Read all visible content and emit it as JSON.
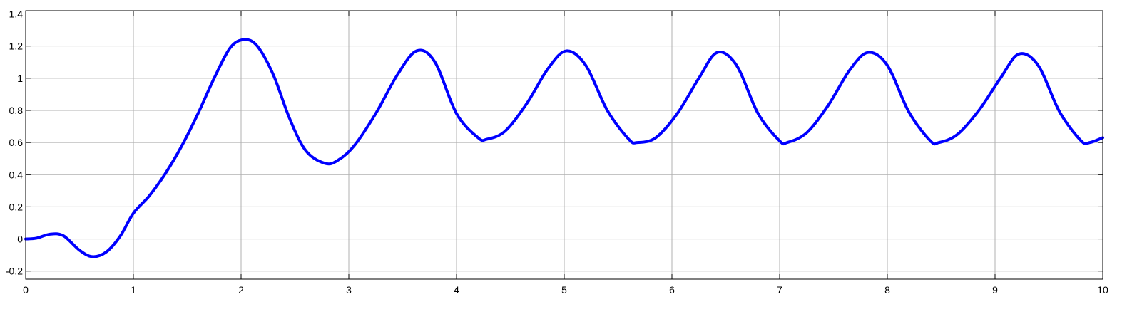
{
  "chart_data": {
    "type": "line",
    "title": "",
    "xlabel": "",
    "ylabel": "",
    "xlim": [
      0,
      10
    ],
    "ylim": [
      -0.25,
      1.42
    ],
    "grid": true,
    "legend": "none",
    "x_ticks": [
      0,
      1,
      2,
      3,
      4,
      5,
      6,
      7,
      8,
      9,
      10
    ],
    "x_tick_labels": [
      "0",
      "1",
      "2",
      "3",
      "4",
      "5",
      "6",
      "7",
      "8",
      "9",
      "10"
    ],
    "y_ticks": [
      -0.2,
      0,
      0.2,
      0.4,
      0.6,
      0.8,
      1,
      1.2,
      1.4
    ],
    "y_tick_labels": [
      "-0.2",
      "0",
      "0.2",
      "0.4",
      "0.6",
      "0.8",
      "1",
      "1.2",
      "1.4"
    ],
    "series": [
      {
        "color": "#0000ff",
        "x": [
          0,
          0.1,
          0.23,
          0.35,
          0.5,
          0.62,
          0.75,
          0.88,
          1.0,
          1.15,
          1.3,
          1.45,
          1.6,
          1.75,
          1.9,
          2.03,
          2.15,
          2.3,
          2.45,
          2.6,
          2.78,
          2.9,
          3.05,
          3.25,
          3.45,
          3.63,
          3.8,
          4.0,
          4.2,
          4.28,
          4.45,
          4.65,
          4.85,
          5.02,
          5.2,
          5.4,
          5.6,
          5.68,
          5.85,
          6.05,
          6.25,
          6.42,
          6.6,
          6.8,
          7.0,
          7.07,
          7.25,
          7.45,
          7.65,
          7.82,
          8.0,
          8.2,
          8.4,
          8.48,
          8.65,
          8.85,
          9.05,
          9.22,
          9.4,
          9.6,
          9.8,
          9.88,
          10.0
        ],
        "y": [
          0.0,
          0.005,
          0.03,
          0.02,
          -0.07,
          -0.11,
          -0.08,
          0.02,
          0.16,
          0.27,
          0.41,
          0.58,
          0.78,
          1.0,
          1.19,
          1.24,
          1.2,
          1.02,
          0.75,
          0.55,
          0.47,
          0.49,
          0.58,
          0.78,
          1.02,
          1.17,
          1.1,
          0.78,
          0.63,
          0.62,
          0.67,
          0.84,
          1.06,
          1.17,
          1.08,
          0.8,
          0.62,
          0.6,
          0.63,
          0.78,
          1.0,
          1.16,
          1.08,
          0.78,
          0.61,
          0.6,
          0.66,
          0.83,
          1.05,
          1.16,
          1.08,
          0.79,
          0.61,
          0.6,
          0.65,
          0.8,
          1.0,
          1.15,
          1.08,
          0.79,
          0.61,
          0.6,
          0.63
        ]
      }
    ]
  }
}
